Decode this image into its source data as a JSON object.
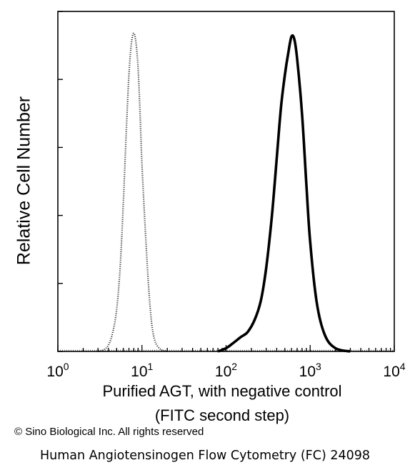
{
  "chart_data": {
    "type": "line",
    "xscale": "log",
    "xlim": [
      1,
      10000
    ],
    "ylim": [
      0,
      100
    ],
    "grid": false,
    "xlabel_lines": [
      "Purified AGT, with negative control",
      "(FITC second step)"
    ],
    "ylabel": "Relative Cell Number",
    "x_tick_labels": [
      {
        "base": "10",
        "exp": "0"
      },
      {
        "base": "10",
        "exp": "1"
      },
      {
        "base": "10",
        "exp": "2"
      },
      {
        "base": "10",
        "exp": "3"
      },
      {
        "base": "10",
        "exp": "4"
      }
    ],
    "series": [
      {
        "style": "dotted",
        "x": [
          3,
          3.5,
          4,
          4.5,
          5,
          5.5,
          6,
          6.5,
          7,
          7.5,
          8,
          8.5,
          9,
          9.5,
          10,
          11,
          12,
          13,
          14,
          15,
          17,
          20
        ],
        "y": [
          0,
          0.5,
          2,
          6,
          13,
          26,
          46,
          68,
          86,
          96,
          99,
          96,
          88,
          74,
          58,
          37,
          20,
          9,
          4,
          2,
          0.5,
          0
        ]
      },
      {
        "style": "solid",
        "x": [
          80,
          100,
          120,
          150,
          180,
          220,
          260,
          300,
          350,
          400,
          450,
          500,
          550,
          600,
          650,
          700,
          800,
          900,
          1000,
          1200,
          1500,
          2000,
          3000
        ],
        "y": [
          0,
          1,
          2.5,
          4.5,
          6,
          10,
          16,
          26,
          42,
          60,
          76,
          86,
          93,
          98,
          97,
          91,
          74,
          52,
          34,
          15,
          5,
          1,
          0
        ]
      }
    ]
  },
  "copyright": "© Sino Biological Inc. All rights reserved",
  "caption": "Human Angiotensinogen Flow Cytometry (FC) 24098"
}
